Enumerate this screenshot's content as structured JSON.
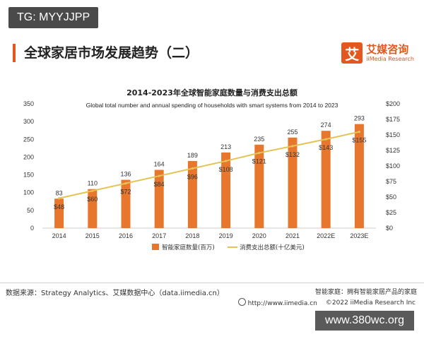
{
  "tag": "TG: MYYJJPP",
  "header": {
    "title": "全球家居市场发展趋势（二）"
  },
  "logo": {
    "mark": "艾",
    "cn": "艾媒咨询",
    "en": "iiMedia Research"
  },
  "chart_data": {
    "type": "bar",
    "title": "2014-2023年全球智能家庭数量与消费支出总额",
    "subtitle": "Global total number and  annual spending of households with smart systems from 2014 to 2023",
    "categories": [
      "2014",
      "2015",
      "2016",
      "2017",
      "2018",
      "2019",
      "2020",
      "2021",
      "2022E",
      "2023E"
    ],
    "series": [
      {
        "name": "智能家庭数量(百万)",
        "kind": "bar",
        "axis": "left",
        "values": [
          83,
          110,
          136,
          164,
          189,
          213,
          235,
          255,
          274,
          293
        ],
        "labels": [
          "83",
          "110",
          "136",
          "164",
          "189",
          "213",
          "235",
          "255",
          "274",
          "293"
        ]
      },
      {
        "name": "消费支出总额(十亿美元)",
        "kind": "line",
        "axis": "right",
        "values": [
          48,
          60,
          72,
          84,
          96,
          108,
          121,
          132,
          143,
          155
        ],
        "labels": [
          "$48",
          "$60",
          "$72",
          "$84",
          "$96",
          "$108",
          "$121",
          "$132",
          "$143",
          "$155"
        ]
      }
    ],
    "yleft": {
      "min": 0,
      "max": 350,
      "ticks": [
        "0",
        "50",
        "100",
        "150",
        "200",
        "250",
        "300",
        "350"
      ]
    },
    "yright": {
      "min": 0,
      "max": 200,
      "ticks": [
        "$0",
        "$25",
        "$50",
        "$75",
        "$100",
        "$125",
        "$150",
        "$175",
        "$200"
      ]
    },
    "legend_position": "bottom-center",
    "grid": false,
    "colors": {
      "bar": "#e8772e",
      "line": "#e3c456"
    }
  },
  "footer": {
    "source": "数据来源：Strategy Analytics、艾媒数据中心（data.iimedia.cn）",
    "note": "智能家庭：拥有智能家居产品的家庭",
    "url": "http://www.iimedia.cn",
    "copyright": "©2022  iiMedia Research  Inc"
  },
  "watermark": "www.380wc.org"
}
